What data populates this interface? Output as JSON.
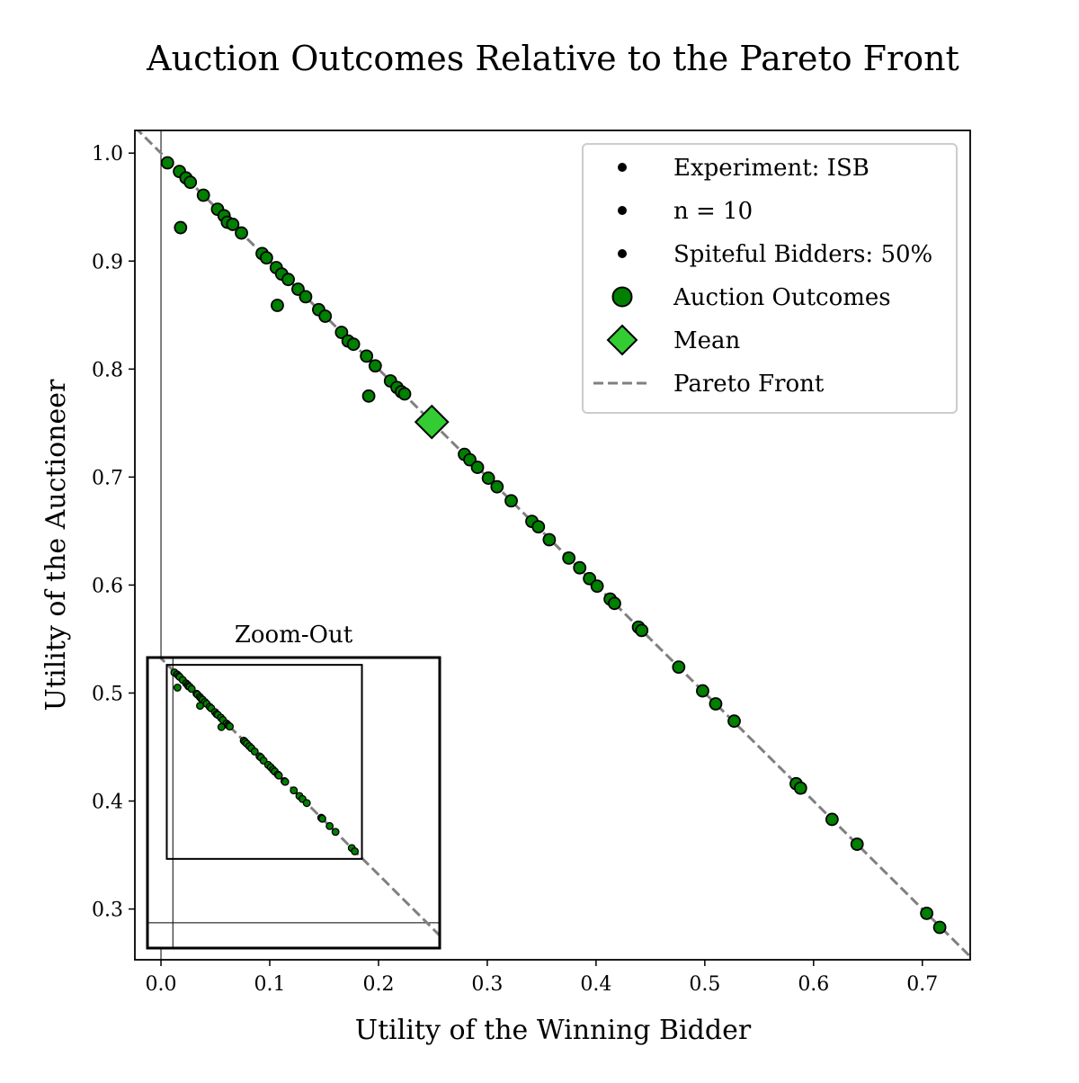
{
  "chart_data": {
    "type": "scatter",
    "title": "Auction Outcomes Relative to the Pareto Front",
    "xlabel": "Utility of the Winning Bidder",
    "ylabel": "Utility of the Auctioneer",
    "xlim": [
      -0.024,
      0.744
    ],
    "ylim": [
      0.253,
      1.021
    ],
    "x_ticks": [
      "0.0",
      "0.1",
      "0.2",
      "0.3",
      "0.4",
      "0.5",
      "0.6",
      "0.7"
    ],
    "y_ticks": [
      "0.3",
      "0.4",
      "0.5",
      "0.6",
      "0.7",
      "0.8",
      "0.9",
      "1.0"
    ],
    "x_tick_values": [
      0.0,
      0.1,
      0.2,
      0.3,
      0.4,
      0.5,
      0.6,
      0.7
    ],
    "y_tick_values": [
      0.3,
      0.4,
      0.5,
      0.6,
      0.7,
      0.8,
      0.9,
      1.0
    ],
    "pareto_front": {
      "name": "Pareto Front",
      "x": [
        -0.024,
        0.744
      ],
      "y": [
        1.024,
        0.256
      ],
      "color": "#808080"
    },
    "mean": {
      "name": "Mean",
      "x": 0.249,
      "y": 0.751,
      "color": "#33cc33"
    },
    "outcomes": {
      "name": "Auction Outcomes",
      "color": "#008000",
      "points": [
        [
          0.006,
          0.991
        ],
        [
          0.017,
          0.983
        ],
        [
          0.023,
          0.977
        ],
        [
          0.027,
          0.973
        ],
        [
          0.039,
          0.961
        ],
        [
          0.052,
          0.948
        ],
        [
          0.058,
          0.942
        ],
        [
          0.061,
          0.936
        ],
        [
          0.066,
          0.934
        ],
        [
          0.074,
          0.926
        ],
        [
          0.093,
          0.907
        ],
        [
          0.097,
          0.903
        ],
        [
          0.106,
          0.894
        ],
        [
          0.111,
          0.888
        ],
        [
          0.117,
          0.883
        ],
        [
          0.126,
          0.874
        ],
        [
          0.133,
          0.867
        ],
        [
          0.145,
          0.855
        ],
        [
          0.151,
          0.849
        ],
        [
          0.166,
          0.834
        ],
        [
          0.172,
          0.826
        ],
        [
          0.177,
          0.823
        ],
        [
          0.189,
          0.812
        ],
        [
          0.197,
          0.803
        ],
        [
          0.211,
          0.789
        ],
        [
          0.217,
          0.783
        ],
        [
          0.221,
          0.779
        ],
        [
          0.224,
          0.777
        ],
        [
          0.279,
          0.721
        ],
        [
          0.284,
          0.716
        ],
        [
          0.291,
          0.709
        ],
        [
          0.301,
          0.699
        ],
        [
          0.309,
          0.691
        ],
        [
          0.322,
          0.678
        ],
        [
          0.341,
          0.659
        ],
        [
          0.347,
          0.654
        ],
        [
          0.357,
          0.642
        ],
        [
          0.375,
          0.625
        ],
        [
          0.385,
          0.616
        ],
        [
          0.394,
          0.606
        ],
        [
          0.401,
          0.599
        ],
        [
          0.413,
          0.587
        ],
        [
          0.417,
          0.583
        ],
        [
          0.439,
          0.561
        ],
        [
          0.442,
          0.558
        ],
        [
          0.476,
          0.524
        ],
        [
          0.498,
          0.502
        ],
        [
          0.51,
          0.49
        ],
        [
          0.527,
          0.474
        ],
        [
          0.584,
          0.416
        ],
        [
          0.588,
          0.412
        ],
        [
          0.617,
          0.383
        ],
        [
          0.64,
          0.36
        ],
        [
          0.704,
          0.296
        ],
        [
          0.716,
          0.283
        ],
        [
          0.018,
          0.931
        ],
        [
          0.107,
          0.859
        ],
        [
          0.191,
          0.775
        ]
      ]
    },
    "legend": {
      "placement": "upper right",
      "entries": [
        "Experiment: ISB",
        "n = 10",
        "Spiteful Bidders: 50%",
        "Auction Outcomes",
        "Mean",
        "Pareto Front"
      ]
    },
    "inset": {
      "title": "Zoom-Out",
      "xlim": [
        -0.1,
        1.05
      ],
      "ylim": [
        -0.1,
        1.05
      ],
      "zoom_box": {
        "x": [
          -0.024,
          0.744
        ],
        "y": [
          0.253,
          1.021
        ]
      }
    }
  }
}
